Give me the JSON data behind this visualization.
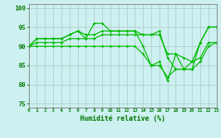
{
  "series": [
    {
      "y": [
        90,
        92,
        92,
        92,
        92,
        93,
        94,
        92,
        96,
        96,
        94,
        94,
        94,
        94,
        90,
        85,
        86,
        81,
        88,
        84,
        84,
        91,
        95,
        95
      ]
    },
    {
      "y": [
        90,
        92,
        92,
        92,
        92,
        93,
        94,
        93,
        93,
        94,
        94,
        94,
        94,
        94,
        93,
        93,
        94,
        87,
        84,
        84,
        86,
        91,
        95,
        95
      ]
    },
    {
      "y": [
        90,
        91,
        91,
        91,
        91,
        92,
        92,
        92,
        92,
        93,
        93,
        93,
        93,
        93,
        93,
        93,
        93,
        88,
        88,
        87,
        86,
        87,
        91,
        91
      ]
    },
    {
      "y": [
        90,
        90,
        90,
        90,
        90,
        90,
        90,
        90,
        90,
        90,
        90,
        90,
        90,
        90,
        88,
        85,
        85,
        82,
        84,
        84,
        84,
        86,
        90,
        91
      ]
    }
  ],
  "x": [
    0,
    1,
    2,
    3,
    4,
    5,
    6,
    7,
    8,
    9,
    10,
    11,
    12,
    13,
    14,
    15,
    16,
    17,
    18,
    19,
    20,
    21,
    22,
    23
  ],
  "xlim": [
    0,
    23
  ],
  "ylim": [
    74,
    101
  ],
  "yticks": [
    75,
    80,
    85,
    90,
    95,
    100
  ],
  "xtick_labels": [
    "0",
    "1",
    "2",
    "3",
    "4",
    "5",
    "6",
    "7",
    "8",
    "9",
    "10",
    "11",
    "12",
    "13",
    "14",
    "15",
    "16",
    "17",
    "18",
    "19",
    "20",
    "21",
    "22",
    "23"
  ],
  "xlabel": "Humidité relative (%)",
  "grid_color": "#b0c8c8",
  "bg_color": "#cdf0f0",
  "line_color": "#00bb00",
  "marker": "+",
  "marker_size": 3.5,
  "marker_ew": 1.0,
  "lw": 1.0
}
